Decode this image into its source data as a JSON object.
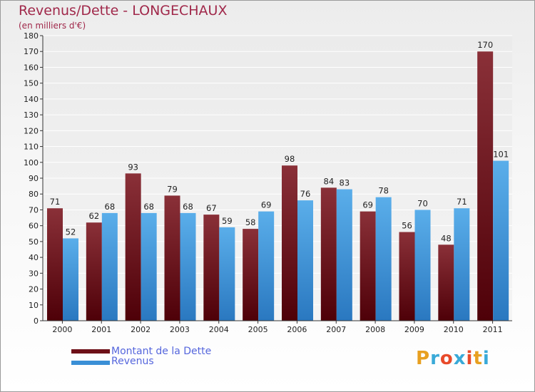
{
  "header": {
    "title": "Revenus/Dette - LONGECHAUX",
    "subtitle": "(en milliers d'€)"
  },
  "logo": {
    "text": "Proxiti",
    "letter_colors": [
      "#e8a020",
      "#3aaad8",
      "#e84a2a",
      "#3aaad8",
      "#e84a2a",
      "#e8a020",
      "#3aaad8"
    ]
  },
  "colors": {
    "dette": "#6e1018",
    "revenus": "#3a8fd6"
  },
  "chart_data": {
    "type": "bar",
    "categories": [
      "2000",
      "2001",
      "2002",
      "2003",
      "2004",
      "2005",
      "2006",
      "2007",
      "2008",
      "2009",
      "2010",
      "2011"
    ],
    "series": [
      {
        "name": "Montant de la Dette",
        "values": [
          71,
          62,
          93,
          79,
          67,
          58,
          98,
          84,
          69,
          56,
          48,
          170
        ]
      },
      {
        "name": "Revenus",
        "values": [
          52,
          68,
          68,
          68,
          59,
          69,
          76,
          83,
          78,
          70,
          71,
          101
        ]
      }
    ],
    "ylim": [
      0,
      180
    ],
    "ystep": 10,
    "grid": true,
    "legend": "bottom-left"
  }
}
